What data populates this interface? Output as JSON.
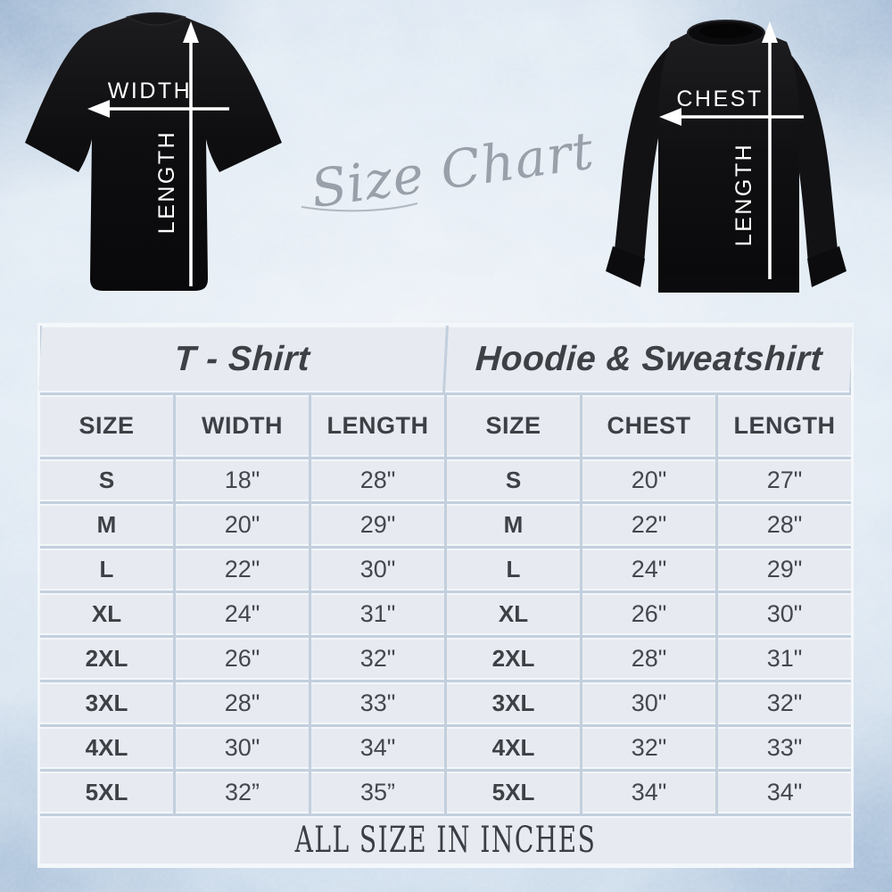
{
  "script_title": "Size Chart",
  "diagrams": {
    "tshirt": {
      "item": "t-shirt",
      "horizontal_label": "WIDTH",
      "vertical_label": "LENGTH"
    },
    "sweatshirt": {
      "item": "sweatshirt",
      "horizontal_label": "CHEST",
      "vertical_label": "LENGTH"
    }
  },
  "table": {
    "sections": [
      {
        "title": "T - Shirt",
        "columns": [
          "SIZE",
          "WIDTH",
          "LENGTH"
        ],
        "rows": [
          [
            "S",
            "18\"",
            "28\""
          ],
          [
            "M",
            "20\"",
            "29\""
          ],
          [
            "L",
            "22\"",
            "30\""
          ],
          [
            "XL",
            "24\"",
            "31\""
          ],
          [
            "2XL",
            "26\"",
            "32\""
          ],
          [
            "3XL",
            "28\"",
            "33\""
          ],
          [
            "4XL",
            "30\"",
            "34\""
          ],
          [
            "5XL",
            "32”",
            "35”"
          ]
        ]
      },
      {
        "title": "Hoodie & Sweatshirt",
        "columns": [
          "SIZE",
          "CHEST",
          "LENGTH"
        ],
        "rows": [
          [
            "S",
            "20\"",
            "27\""
          ],
          [
            "M",
            "22\"",
            "28\""
          ],
          [
            "L",
            "24\"",
            "29\""
          ],
          [
            "XL",
            "26\"",
            "30\""
          ],
          [
            "2XL",
            "28\"",
            "31\""
          ],
          [
            "3XL",
            "30\"",
            "32\""
          ],
          [
            "4XL",
            "32\"",
            "33\""
          ],
          [
            "5XL",
            "34\"",
            "34\""
          ]
        ]
      }
    ],
    "footer": "ALL SIZE IN INCHES"
  },
  "chart_data": [
    {
      "type": "table",
      "title": "T - Shirt",
      "units": "inches",
      "columns": [
        "SIZE",
        "WIDTH",
        "LENGTH"
      ],
      "rows": [
        [
          "S",
          18,
          28
        ],
        [
          "M",
          20,
          29
        ],
        [
          "L",
          22,
          30
        ],
        [
          "XL",
          24,
          31
        ],
        [
          "2XL",
          26,
          32
        ],
        [
          "3XL",
          28,
          33
        ],
        [
          "4XL",
          30,
          34
        ],
        [
          "5XL",
          32,
          35
        ]
      ]
    },
    {
      "type": "table",
      "title": "Hoodie & Sweatshirt",
      "units": "inches",
      "columns": [
        "SIZE",
        "CHEST",
        "LENGTH"
      ],
      "rows": [
        [
          "S",
          20,
          27
        ],
        [
          "M",
          22,
          28
        ],
        [
          "L",
          24,
          29
        ],
        [
          "XL",
          26,
          30
        ],
        [
          "2XL",
          28,
          31
        ],
        [
          "3XL",
          30,
          32
        ],
        [
          "4XL",
          32,
          33
        ],
        [
          "5XL",
          34,
          34
        ]
      ]
    }
  ],
  "colors": {
    "grid_line": "#c3cfdd",
    "cell_bg": "#e7ebf1",
    "cell_border": "#f4f8fb",
    "text": "#3d4146",
    "script_gray": "#99a0aa",
    "garment_black": "#0e0e10",
    "arrow_white": "#ffffff"
  }
}
